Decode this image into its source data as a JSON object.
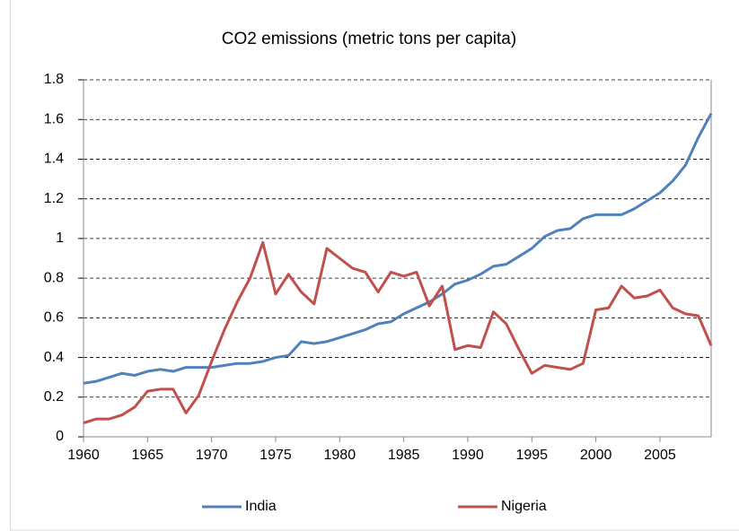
{
  "chart_data": {
    "type": "line",
    "title": "CO2 emissions (metric tons per capita)",
    "x": [
      1960,
      1961,
      1962,
      1963,
      1964,
      1965,
      1966,
      1967,
      1968,
      1969,
      1970,
      1971,
      1972,
      1973,
      1974,
      1975,
      1976,
      1977,
      1978,
      1979,
      1980,
      1981,
      1982,
      1983,
      1984,
      1985,
      1986,
      1987,
      1988,
      1989,
      1990,
      1991,
      1992,
      1993,
      1994,
      1995,
      1996,
      1997,
      1998,
      1999,
      2000,
      2001,
      2002,
      2003,
      2004,
      2005,
      2006,
      2007,
      2008,
      2009
    ],
    "series": [
      {
        "name": "India",
        "color": "#4f81bd",
        "values": [
          0.27,
          0.28,
          0.3,
          0.32,
          0.31,
          0.33,
          0.34,
          0.33,
          0.35,
          0.35,
          0.35,
          0.36,
          0.37,
          0.37,
          0.38,
          0.4,
          0.41,
          0.48,
          0.47,
          0.48,
          0.5,
          0.52,
          0.54,
          0.57,
          0.58,
          0.62,
          0.65,
          0.68,
          0.72,
          0.77,
          0.79,
          0.82,
          0.86,
          0.87,
          0.91,
          0.95,
          1.01,
          1.04,
          1.05,
          1.1,
          1.12,
          1.12,
          1.12,
          1.15,
          1.19,
          1.23,
          1.29,
          1.37,
          1.51,
          1.63
        ]
      },
      {
        "name": "Nigeria",
        "color": "#c0504d",
        "values": [
          0.07,
          0.09,
          0.09,
          0.11,
          0.15,
          0.23,
          0.24,
          0.24,
          0.12,
          0.21,
          0.38,
          0.54,
          0.68,
          0.8,
          0.98,
          0.72,
          0.82,
          0.73,
          0.67,
          0.95,
          0.9,
          0.85,
          0.83,
          0.73,
          0.83,
          0.81,
          0.83,
          0.66,
          0.76,
          0.44,
          0.46,
          0.45,
          0.63,
          0.57,
          0.44,
          0.32,
          0.36,
          0.35,
          0.34,
          0.37,
          0.64,
          0.65,
          0.76,
          0.7,
          0.71,
          0.74,
          0.65,
          0.62,
          0.61,
          0.46
        ]
      }
    ],
    "xlim": [
      1960,
      2009
    ],
    "xticks": [
      1960,
      1965,
      1970,
      1975,
      1980,
      1985,
      1990,
      1995,
      2000,
      2005
    ],
    "ylim": [
      0,
      1.8
    ],
    "yticks": [
      0,
      0.2,
      0.4,
      0.6,
      0.8,
      1,
      1.2,
      1.4,
      1.6,
      1.8
    ],
    "grid": true,
    "legend": "bottom"
  }
}
